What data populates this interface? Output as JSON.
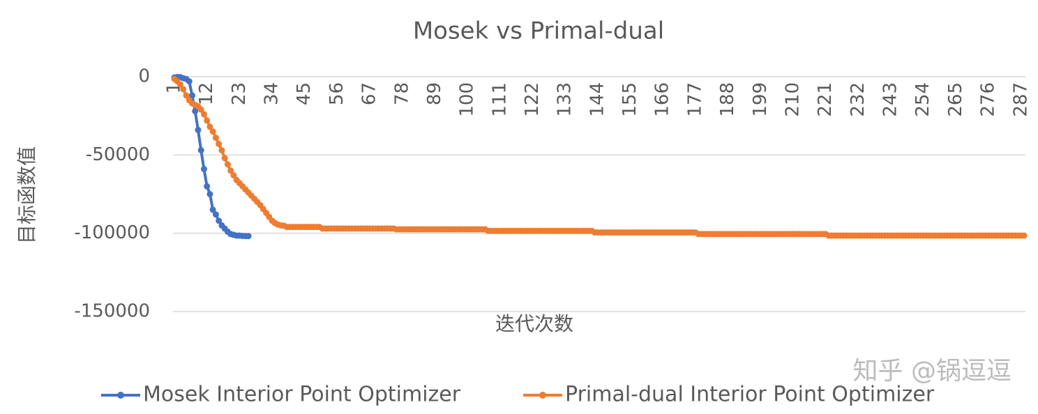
{
  "chart_data": {
    "type": "line",
    "title": "Mosek vs Primal-dual",
    "y_label": "目标函数值",
    "x_label": "迭代次数",
    "watermark": "知乎 @锅逗逗",
    "categories": [
      1,
      null,
      null,
      null,
      null,
      null,
      null,
      null,
      null,
      null,
      null,
      12,
      null,
      null,
      null,
      null,
      null,
      null,
      null,
      null,
      null,
      null,
      23,
      null,
      null,
      null,
      null,
      null,
      null,
      null,
      null,
      null,
      null,
      34,
      null,
      null,
      null,
      null,
      null,
      null,
      null,
      null,
      null,
      null,
      45,
      null,
      null,
      null,
      null,
      null,
      null,
      null,
      null,
      null,
      null,
      56,
      null,
      null,
      null,
      null,
      null,
      null,
      null,
      null,
      null,
      null,
      67,
      null,
      null,
      null,
      null,
      null,
      null,
      null,
      null,
      null,
      null,
      78,
      null,
      null,
      null,
      null,
      null,
      null,
      null,
      null,
      null,
      null,
      89,
      null,
      null,
      null,
      null,
      null,
      null,
      null,
      null,
      null,
      null,
      100,
      null,
      null,
      null,
      null,
      null,
      null,
      null,
      null,
      null,
      null,
      111,
      null,
      null,
      null,
      null,
      null,
      null,
      null,
      null,
      null,
      null,
      122,
      null,
      null,
      null,
      null,
      null,
      null,
      null,
      null,
      null,
      null,
      133,
      null,
      null,
      null,
      null,
      null,
      null,
      null,
      null,
      null,
      null,
      144,
      null,
      null,
      null,
      null,
      null,
      null,
      null,
      null,
      null,
      null,
      155,
      null,
      null,
      null,
      null,
      null,
      null,
      null,
      null,
      null,
      null,
      166,
      null,
      null,
      null,
      null,
      null,
      null,
      null,
      null,
      null,
      null,
      177,
      null,
      null,
      null,
      null,
      null,
      null,
      null,
      null,
      null,
      null,
      188,
      null,
      null,
      null,
      null,
      null,
      null,
      null,
      null,
      null,
      null,
      199,
      null,
      null,
      null,
      null,
      null,
      null,
      null,
      null,
      null,
      null,
      210,
      null,
      null,
      null,
      null,
      null,
      null,
      null,
      null,
      null,
      null,
      221,
      null,
      null,
      null,
      null,
      null,
      null,
      null,
      null,
      null,
      null,
      232,
      null,
      null,
      null,
      null,
      null,
      null,
      null,
      null,
      null,
      null,
      243,
      null,
      null,
      null,
      null,
      null,
      null,
      null,
      null,
      null,
      null,
      254,
      null,
      null,
      null,
      null,
      null,
      null,
      null,
      null,
      null,
      null,
      265,
      null,
      null,
      null,
      null,
      null,
      null,
      null,
      null,
      null,
      null,
      276,
      null,
      null,
      null,
      null,
      null,
      null,
      null,
      null,
      null,
      null,
      287,
      null
    ],
    "series": [
      {
        "name": "Mosek Interior Point Optimizer",
        "color": "#4472c4",
        "values": [
          -500,
          -200,
          -300,
          -1000,
          -1500,
          -3000,
          -12000,
          -22000,
          -34000,
          -47000,
          -59000,
          -70000,
          -75000,
          -85000,
          -88000,
          -92000,
          -95000,
          -97000,
          -99000,
          -100500,
          -101000,
          -101500,
          -101500,
          -101700,
          -101800,
          -101800,
          null,
          null,
          null,
          null,
          null,
          null,
          null,
          null,
          null,
          null,
          null,
          null,
          null,
          null,
          null,
          null,
          null,
          null,
          null,
          null,
          null,
          null,
          null,
          null,
          null,
          null,
          null,
          null,
          null,
          null,
          null,
          null,
          null,
          null,
          null,
          null,
          null,
          null,
          null,
          null,
          null,
          null,
          null,
          null,
          null,
          null,
          null,
          null,
          null,
          null,
          null,
          null,
          null,
          null,
          null,
          null,
          null,
          null,
          null,
          null,
          null,
          null,
          null,
          null,
          null,
          null,
          null,
          null,
          null,
          null,
          null,
          null,
          null,
          null,
          null,
          null,
          null,
          null,
          null,
          null,
          null,
          null,
          null,
          null,
          null,
          null,
          null,
          null,
          null,
          null,
          null,
          null,
          null,
          null,
          null,
          null,
          null,
          null,
          null,
          null,
          null,
          null,
          null,
          null,
          null,
          null,
          null,
          null,
          null,
          null,
          null,
          null,
          null,
          null,
          null,
          null,
          null,
          null,
          null,
          null,
          null,
          null,
          null,
          null,
          null,
          null,
          null,
          null,
          null,
          null,
          null,
          null,
          null,
          null,
          null,
          null,
          null,
          null,
          null,
          null,
          null,
          null,
          null,
          null,
          null,
          null,
          null,
          null,
          null,
          null,
          null,
          null,
          null,
          null,
          null,
          null,
          null,
          null,
          null,
          null,
          null,
          null,
          null,
          null,
          null,
          null,
          null,
          null,
          null,
          null,
          null,
          null,
          null,
          null,
          null,
          null,
          null,
          null,
          null,
          null,
          null,
          null,
          null,
          null,
          null,
          null,
          null,
          null,
          null,
          null,
          null,
          null,
          null,
          null,
          null,
          null,
          null,
          null,
          null,
          null,
          null,
          null,
          null,
          null,
          null,
          null,
          null,
          null,
          null,
          null,
          null,
          null,
          null,
          null,
          null,
          null,
          null,
          null,
          null,
          null,
          null,
          null,
          null,
          null,
          null,
          null,
          null,
          null,
          null,
          null,
          null,
          null,
          null,
          null,
          null,
          null,
          null,
          null,
          null,
          null,
          null,
          null,
          null,
          null,
          null,
          null,
          null,
          null,
          null,
          null,
          null,
          null,
          null,
          null,
          null,
          null,
          null,
          null,
          null,
          null,
          null,
          null
        ]
      },
      {
        "name": "Primal-dual Interior Point Optimizer",
        "color": "#ed7d31",
        "values": [
          -1500,
          -3000,
          -5000,
          -8000,
          -12000,
          -15000,
          -17000,
          -18000,
          -19000,
          -21000,
          -24000,
          -28000,
          -32000,
          -35000,
          -39000,
          -43000,
          -47000,
          -52000,
          -56000,
          -60000,
          -63000,
          -66000,
          -68000,
          -70000,
          -72000,
          -74000,
          -76000,
          -78000,
          -80000,
          -82000,
          -84500,
          -87000,
          -89500,
          -92000,
          -93500,
          -94500,
          -95000,
          -95200,
          -96000,
          -96000,
          -96000,
          -96000,
          -96000,
          -96000,
          -96000,
          -96000,
          -96000,
          -96000,
          -96000,
          -96000,
          -97000,
          -97000,
          -97000,
          -97000,
          -97000,
          -97000,
          -97000,
          -97000,
          -97000,
          -97000,
          -97000,
          -97000,
          -97000,
          -97000,
          -97000,
          -97000,
          -97000,
          -97000,
          -97000,
          -97000,
          -97000,
          -97000,
          -97000,
          -97000,
          -97000,
          -97500,
          -97500,
          -97500,
          -97500,
          -97500,
          -97500,
          -97500,
          -97500,
          -97500,
          -97500,
          -97500,
          -97500,
          -97500,
          -97500,
          -97500,
          -97500,
          -97500,
          -97500,
          -97500,
          -97500,
          -97500,
          -97500,
          -97500,
          -97500,
          -97500,
          -97500,
          -97500,
          -97500,
          -97500,
          -97500,
          -97500,
          -98500,
          -98500,
          -98500,
          -98500,
          -98500,
          -98500,
          -98500,
          -98500,
          -98500,
          -98500,
          -98500,
          -98500,
          -98500,
          -98500,
          -98500,
          -98500,
          -98500,
          -98500,
          -98500,
          -98500,
          -98500,
          -98500,
          -98500,
          -98500,
          -98500,
          -98500,
          -98500,
          -98500,
          -98500,
          -98500,
          -98500,
          -98500,
          -98500,
          -98500,
          -98500,
          -98500,
          -99500,
          -99500,
          -99500,
          -99500,
          -99500,
          -99500,
          -99500,
          -99500,
          -99500,
          -99500,
          -99500,
          -99500,
          -99500,
          -99500,
          -99500,
          -99500,
          -99500,
          -99500,
          -99500,
          -99500,
          -99500,
          -99500,
          -99500,
          -99500,
          -99500,
          -99500,
          -99500,
          -99500,
          -99500,
          -99500,
          -99500,
          -99500,
          -99500,
          -99500,
          -99500,
          -100500,
          -100500,
          -100500,
          -100500,
          -100500,
          -100500,
          -100500,
          -100500,
          -100500,
          -100500,
          -100500,
          -100500,
          -100500,
          -100500,
          -100500,
          -100500,
          -100500,
          -100500,
          -100500,
          -100500,
          -100500,
          -100500,
          -100500,
          -100500,
          -100500,
          -100500,
          -100500,
          -100500,
          -100500,
          -100500,
          -100500,
          -100500,
          -100500,
          -100500,
          -100500,
          -100500,
          -100500,
          -100500,
          -100500,
          -100500,
          -100500,
          -100500,
          -100500,
          -100500,
          -101500,
          -101500,
          -101500,
          -101500,
          -101500,
          -101500,
          -101500,
          -101500,
          -101500,
          -101500,
          -101500,
          -101500,
          -101500,
          -101500,
          -101500,
          -101500,
          -101500,
          -101500,
          -101500,
          -101500,
          -101500,
          -101500,
          -101500,
          -101500,
          -101500,
          -101500,
          -101500,
          -101500,
          -101500,
          -101500,
          -101500,
          -101500,
          -101500,
          -101500,
          -101500,
          -101500,
          -101500,
          -101500,
          -101500,
          -101500,
          -101500,
          -101500,
          -101500,
          -101500,
          -101500,
          -101500,
          -101500,
          -101500,
          -101500,
          -101500,
          -101500,
          -101500,
          -101500,
          -101500,
          -101500,
          -101500,
          -101500,
          -101500,
          -101500,
          -101500,
          -101500,
          -101500,
          -101500,
          -101500,
          -101500,
          -101500,
          -101500
        ]
      }
    ],
    "ylim": [
      -150000,
      0
    ],
    "yticks": [
      0,
      -50000,
      -100000,
      -150000
    ],
    "grid": true,
    "legend": "bottom"
  }
}
